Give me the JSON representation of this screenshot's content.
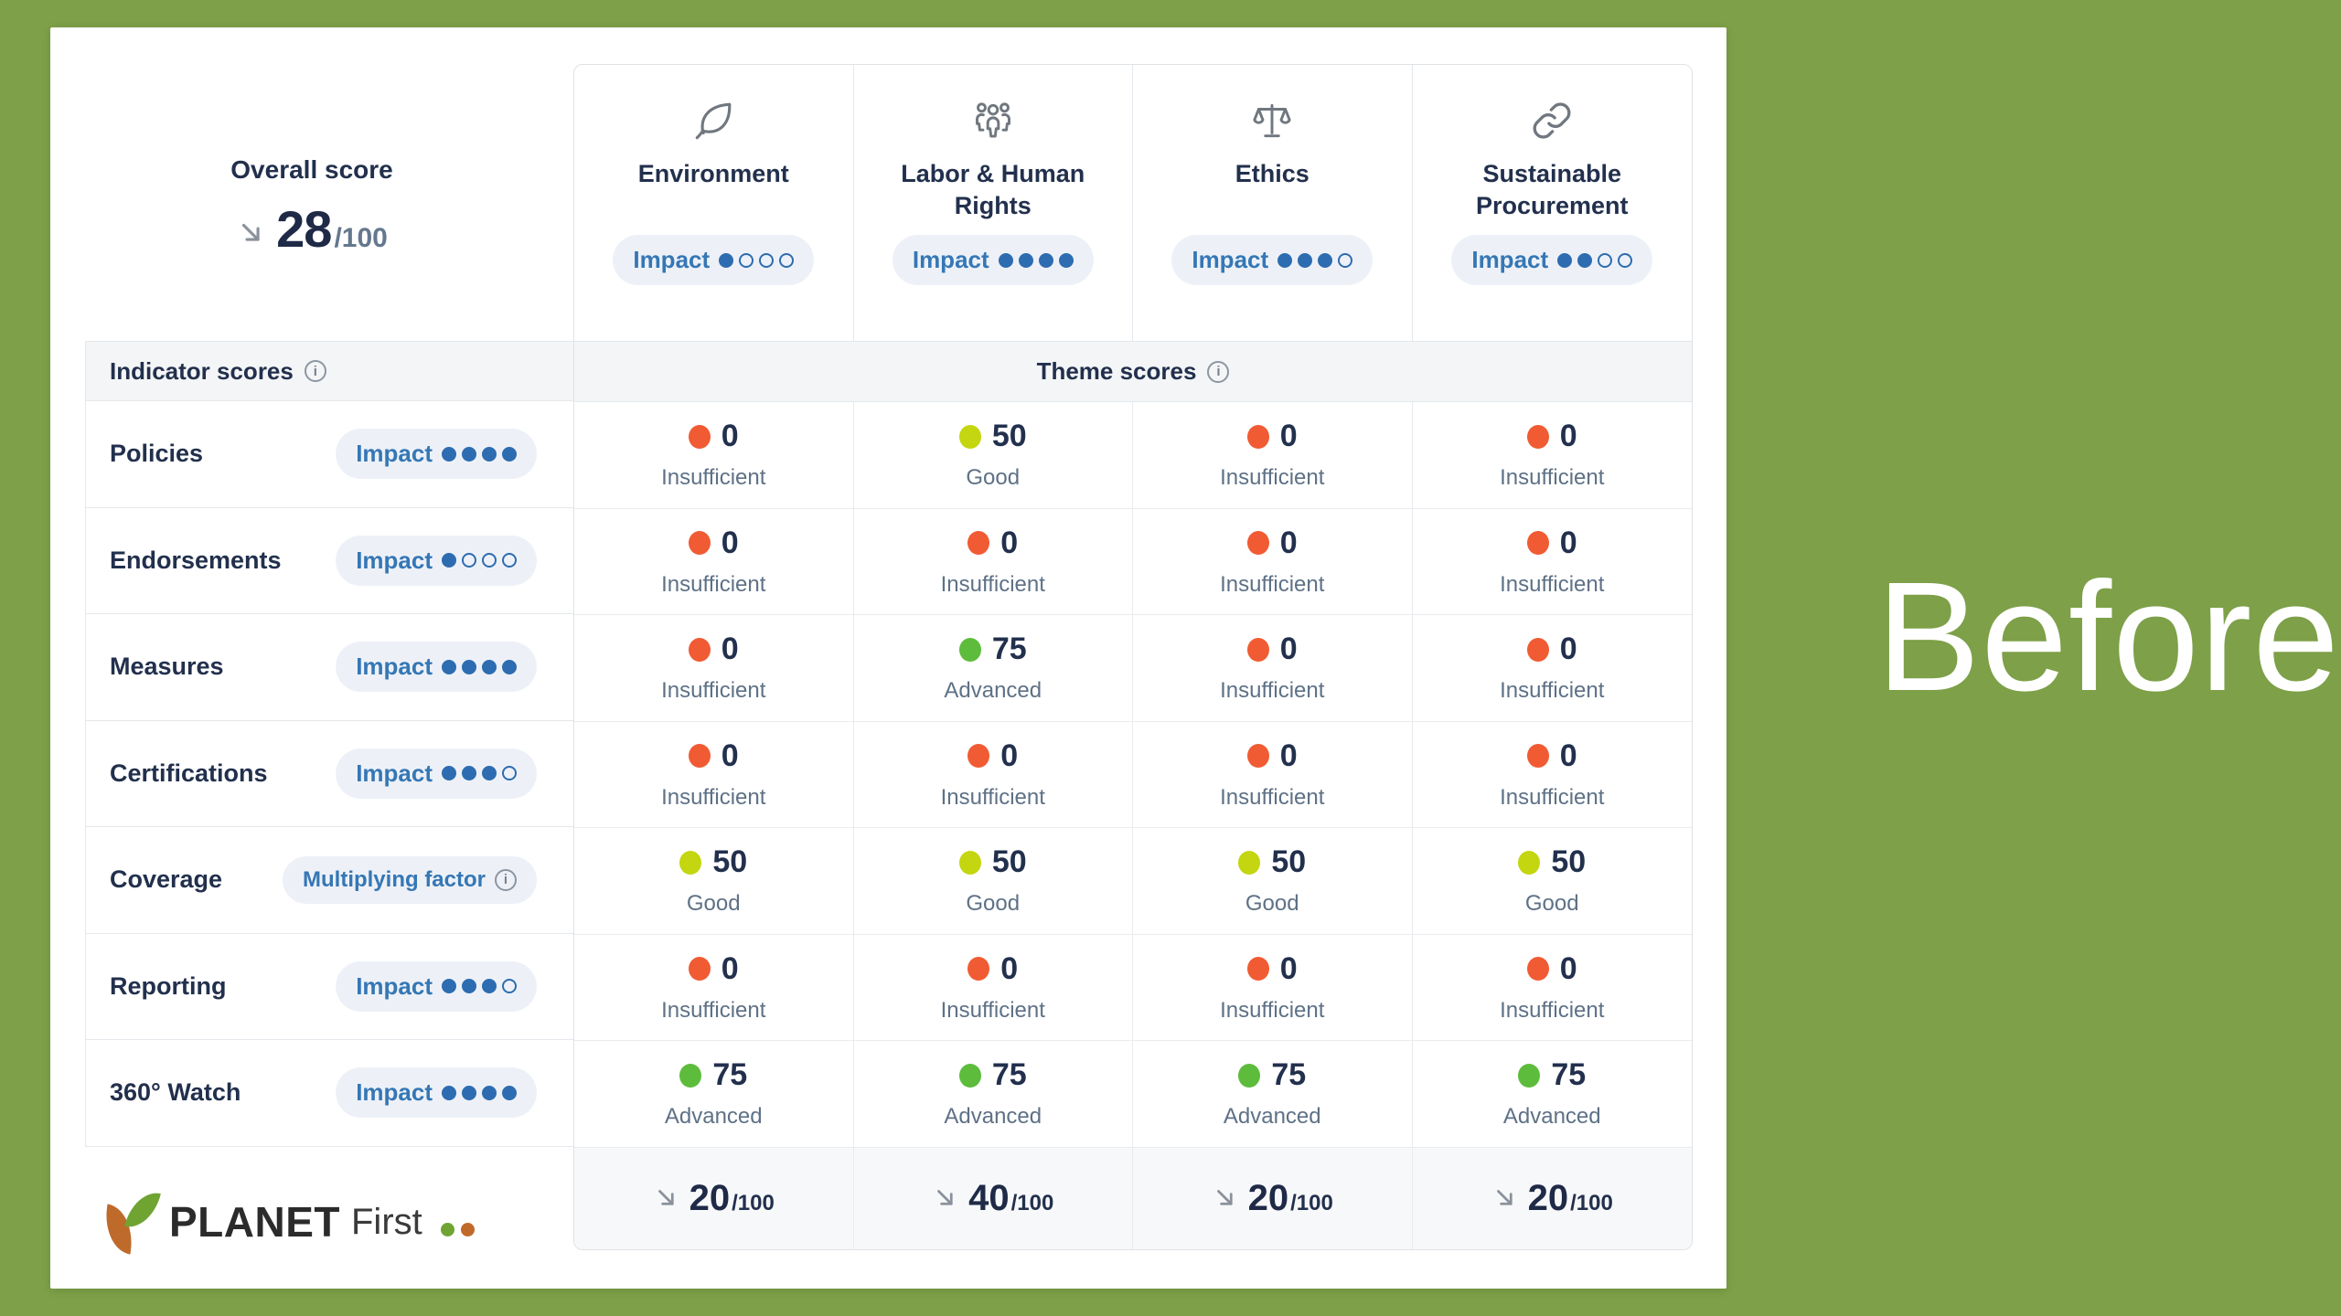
{
  "page": {
    "background_color": "#7DA048",
    "side_label": "Before"
  },
  "card": {
    "overall": {
      "label": "Overall score",
      "value": "28",
      "denominator": "/100",
      "trend": "down"
    },
    "section_headers": {
      "indicator": "Indicator scores",
      "theme": "Theme scores"
    },
    "impact_label": "Impact",
    "themes": [
      {
        "name": "Environment",
        "icon": "leaf-icon",
        "impact_filled": 1,
        "impact_total": 4
      },
      {
        "name": "Labor & Human Rights",
        "icon": "people-icon",
        "impact_filled": 4,
        "impact_total": 4
      },
      {
        "name": "Ethics",
        "icon": "scale-icon",
        "impact_filled": 3,
        "impact_total": 4
      },
      {
        "name": "Sustainable Procurement",
        "icon": "link-icon",
        "impact_filled": 2,
        "impact_total": 4
      }
    ],
    "indicators": [
      {
        "name": "Policies",
        "badge": {
          "type": "impact",
          "filled": 4,
          "total": 4
        },
        "scores": [
          {
            "value": "0",
            "label": "Insufficient",
            "level": "insufficient"
          },
          {
            "value": "50",
            "label": "Good",
            "level": "good"
          },
          {
            "value": "0",
            "label": "Insufficient",
            "level": "insufficient"
          },
          {
            "value": "0",
            "label": "Insufficient",
            "level": "insufficient"
          }
        ]
      },
      {
        "name": "Endorsements",
        "badge": {
          "type": "impact",
          "filled": 1,
          "total": 4
        },
        "scores": [
          {
            "value": "0",
            "label": "Insufficient",
            "level": "insufficient"
          },
          {
            "value": "0",
            "label": "Insufficient",
            "level": "insufficient"
          },
          {
            "value": "0",
            "label": "Insufficient",
            "level": "insufficient"
          },
          {
            "value": "0",
            "label": "Insufficient",
            "level": "insufficient"
          }
        ]
      },
      {
        "name": "Measures",
        "badge": {
          "type": "impact",
          "filled": 4,
          "total": 4
        },
        "scores": [
          {
            "value": "0",
            "label": "Insufficient",
            "level": "insufficient"
          },
          {
            "value": "75",
            "label": "Advanced",
            "level": "advanced"
          },
          {
            "value": "0",
            "label": "Insufficient",
            "level": "insufficient"
          },
          {
            "value": "0",
            "label": "Insufficient",
            "level": "insufficient"
          }
        ]
      },
      {
        "name": "Certifications",
        "badge": {
          "type": "impact",
          "filled": 3,
          "total": 4
        },
        "scores": [
          {
            "value": "0",
            "label": "Insufficient",
            "level": "insufficient"
          },
          {
            "value": "0",
            "label": "Insufficient",
            "level": "insufficient"
          },
          {
            "value": "0",
            "label": "Insufficient",
            "level": "insufficient"
          },
          {
            "value": "0",
            "label": "Insufficient",
            "level": "insufficient"
          }
        ]
      },
      {
        "name": "Coverage",
        "badge": {
          "type": "multiplying",
          "label": "Multiplying factor"
        },
        "scores": [
          {
            "value": "50",
            "label": "Good",
            "level": "good"
          },
          {
            "value": "50",
            "label": "Good",
            "level": "good"
          },
          {
            "value": "50",
            "label": "Good",
            "level": "good"
          },
          {
            "value": "50",
            "label": "Good",
            "level": "good"
          }
        ]
      },
      {
        "name": "Reporting",
        "badge": {
          "type": "impact",
          "filled": 3,
          "total": 4
        },
        "scores": [
          {
            "value": "0",
            "label": "Insufficient",
            "level": "insufficient"
          },
          {
            "value": "0",
            "label": "Insufficient",
            "level": "insufficient"
          },
          {
            "value": "0",
            "label": "Insufficient",
            "level": "insufficient"
          },
          {
            "value": "0",
            "label": "Insufficient",
            "level": "insufficient"
          }
        ]
      },
      {
        "name": "360° Watch",
        "badge": {
          "type": "impact",
          "filled": 4,
          "total": 4
        },
        "scores": [
          {
            "value": "75",
            "label": "Advanced",
            "level": "advanced"
          },
          {
            "value": "75",
            "label": "Advanced",
            "level": "advanced"
          },
          {
            "value": "75",
            "label": "Advanced",
            "level": "advanced"
          },
          {
            "value": "75",
            "label": "Advanced",
            "level": "advanced"
          }
        ]
      }
    ],
    "totals": [
      {
        "value": "20",
        "denominator": "/100",
        "trend": "down"
      },
      {
        "value": "40",
        "denominator": "/100",
        "trend": "down"
      },
      {
        "value": "20",
        "denominator": "/100",
        "trend": "down"
      },
      {
        "value": "20",
        "denominator": "/100",
        "trend": "down"
      }
    ],
    "score_colors": {
      "insufficient": "#F15B33",
      "good": "#C3D60F",
      "advanced": "#5DBC3C"
    },
    "logo": {
      "brand": "PLANET",
      "suffix": "First"
    }
  }
}
